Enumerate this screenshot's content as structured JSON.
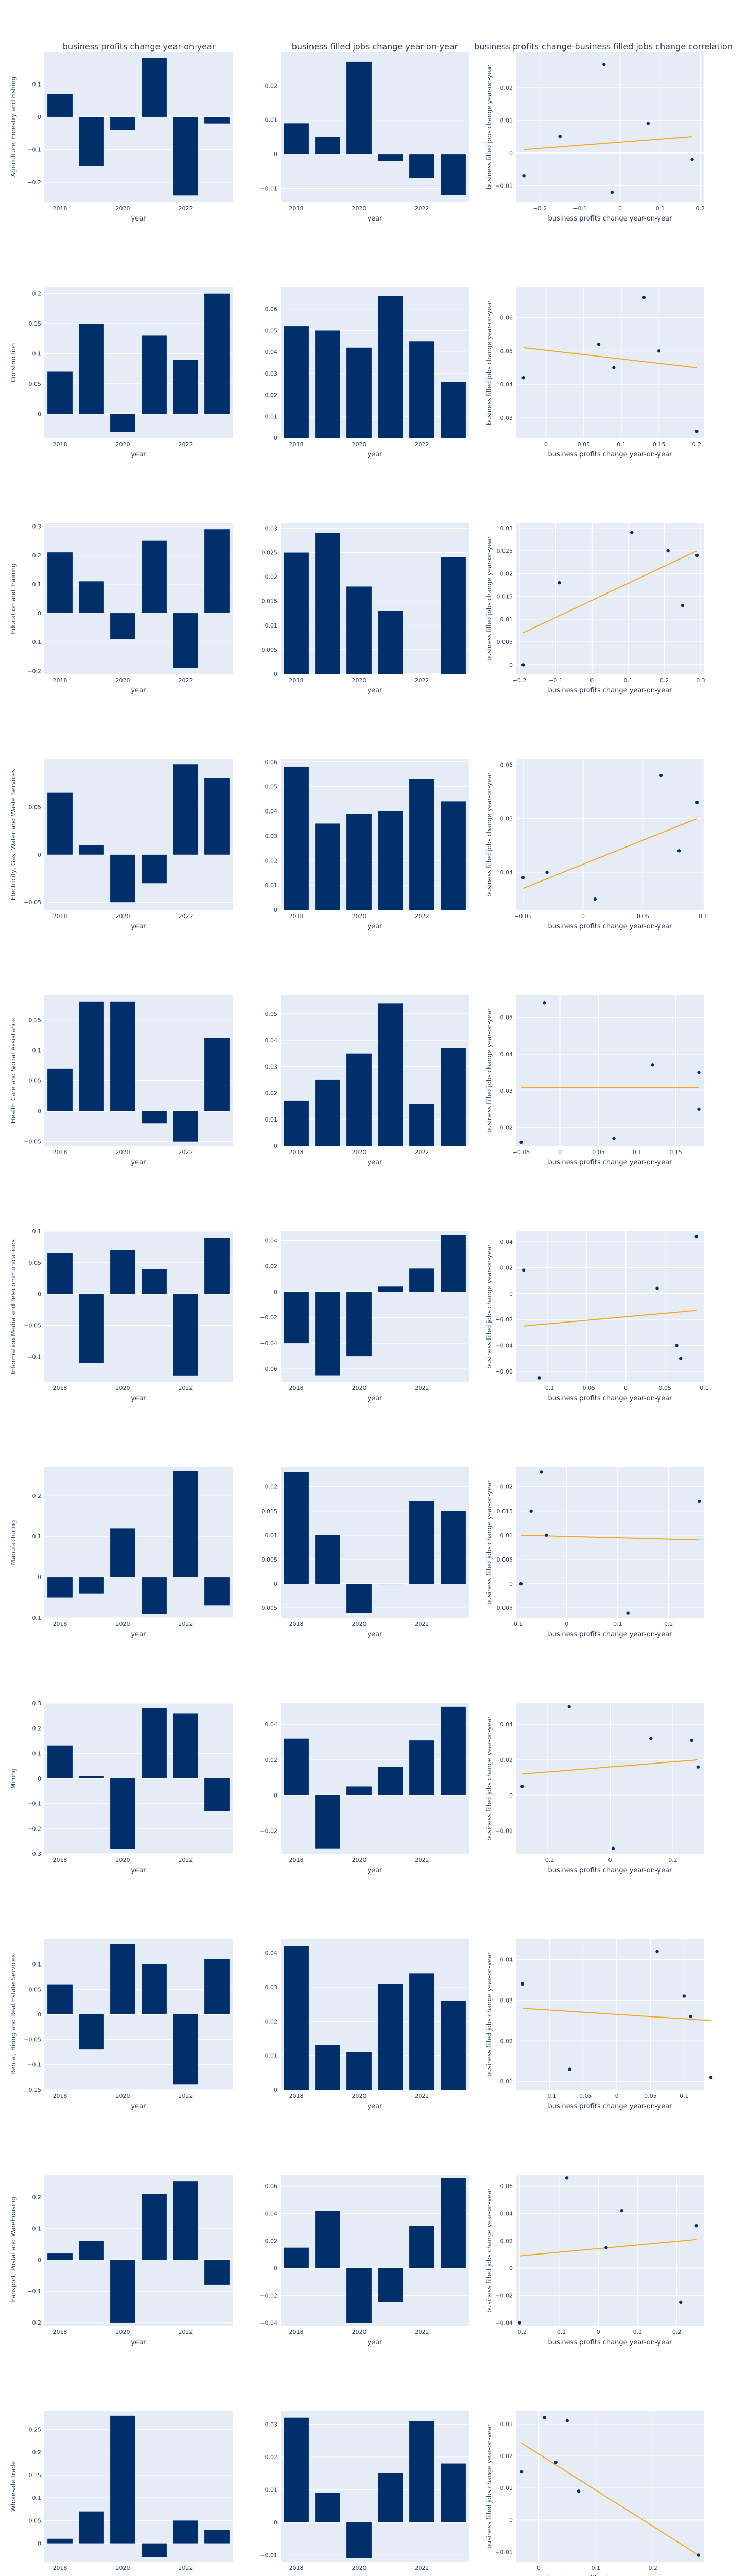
{
  "column_titles": [
    "business profits change year-on-year",
    "business filled jobs change year-on-year",
    "business profits change-business filled jobs change correlation"
  ],
  "axis_titles": {
    "bar_x": "year",
    "scatter_x": "business profits change year-on-year",
    "scatter_y": "business filled jobs change year-on-year"
  },
  "colors": {
    "bar": "#002f6c",
    "point": "#002f6c",
    "trendline": "#f5a623",
    "plot_bg": "#e5ecf6",
    "grid": "#ffffff",
    "text": "#2a3f5f"
  },
  "chart_data": {
    "type": "bar",
    "layout": "11 rows x 3 columns: profits bar chart, filled jobs bar chart, scatter with linear trendline",
    "years": [
      2018,
      2019,
      2020,
      2021,
      2022,
      2023
    ],
    "x_tick_labels": [
      "2018",
      "2020",
      "2022"
    ],
    "rows": [
      {
        "industry": "Agriculture, Forestry and Fishing",
        "profits": [
          0.07,
          -0.15,
          -0.04,
          0.18,
          -0.24,
          -0.02
        ],
        "profits_ticks": [
          -0.2,
          -0.1,
          0,
          0.1
        ],
        "profits_range": [
          -0.26,
          0.2
        ],
        "jobs": [
          0.009,
          0.005,
          0.027,
          -0.002,
          -0.007,
          -0.012
        ],
        "jobs_ticks": [
          -0.01,
          0,
          0.01,
          0.02
        ],
        "jobs_range": [
          -0.014,
          0.03
        ],
        "scatter_x_ticks": [
          -0.2,
          -0.1,
          0,
          0.1,
          0.2
        ],
        "scatter_x_range": [
          -0.26,
          0.21
        ],
        "scatter_y_range": [
          -0.015,
          0.031
        ],
        "trend": [
          0.001,
          0.005
        ]
      },
      {
        "industry": "Construction",
        "profits": [
          0.07,
          0.15,
          -0.03,
          0.13,
          0.09,
          0.2
        ],
        "profits_ticks": [
          0,
          0.05,
          0.1,
          0.15,
          0.2
        ],
        "profits_range": [
          -0.04,
          0.21
        ],
        "jobs": [
          0.052,
          0.05,
          0.042,
          0.066,
          0.045,
          0.026
        ],
        "jobs_ticks": [
          0,
          0.01,
          0.02,
          0.03,
          0.04,
          0.05,
          0.06
        ],
        "jobs_range": [
          0,
          0.07
        ],
        "scatter_x_ticks": [
          0,
          0.05,
          0.1,
          0.15,
          0.2
        ],
        "scatter_x_range": [
          -0.04,
          0.21
        ],
        "scatter_y_range": [
          0.024,
          0.069
        ],
        "trend": [
          0.051,
          0.045
        ]
      },
      {
        "industry": "Education and Training",
        "profits": [
          0.21,
          0.11,
          -0.09,
          0.25,
          -0.19,
          0.29
        ],
        "profits_ticks": [
          -0.2,
          -0.1,
          0,
          0.1,
          0.2,
          0.3
        ],
        "profits_range": [
          -0.21,
          0.31
        ],
        "jobs": [
          0.025,
          0.029,
          0.018,
          0.013,
          0.0,
          0.024
        ],
        "jobs_ticks": [
          0,
          0.005,
          0.01,
          0.015,
          0.02,
          0.025,
          0.03
        ],
        "jobs_range": [
          0,
          0.031
        ],
        "scatter_x_ticks": [
          -0.2,
          -0.1,
          0,
          0.1,
          0.2,
          0.3
        ],
        "scatter_x_range": [
          -0.21,
          0.31
        ],
        "scatter_y_range": [
          -0.002,
          0.031
        ],
        "trend": [
          0.007,
          0.025
        ]
      },
      {
        "industry": "Electricity, Gas, Water and Waste Services",
        "profits": [
          0.065,
          0.01,
          -0.05,
          -0.03,
          0.095,
          0.08
        ],
        "profits_ticks": [
          -0.05,
          0,
          0.05
        ],
        "profits_range": [
          -0.058,
          0.1
        ],
        "jobs": [
          0.058,
          0.035,
          0.039,
          0.04,
          0.053,
          0.044
        ],
        "jobs_ticks": [
          0,
          0.01,
          0.02,
          0.03,
          0.04,
          0.05,
          0.06
        ],
        "jobs_range": [
          0,
          0.061
        ],
        "scatter_x_ticks": [
          -0.05,
          0,
          0.05,
          0.1
        ],
        "scatter_x_range": [
          -0.056,
          0.101
        ],
        "scatter_y_range": [
          0.033,
          0.061
        ],
        "trend": [
          0.037,
          0.05
        ]
      },
      {
        "industry": "Health Care and Social Assistance",
        "profits": [
          0.07,
          0.18,
          0.18,
          -0.02,
          -0.05,
          0.12
        ],
        "profits_ticks": [
          -0.05,
          0,
          0.05,
          0.1,
          0.15
        ],
        "profits_range": [
          -0.057,
          0.19
        ],
        "jobs": [
          0.017,
          0.025,
          0.035,
          0.054,
          0.016,
          0.037
        ],
        "jobs_ticks": [
          0,
          0.01,
          0.02,
          0.03,
          0.04,
          0.05
        ],
        "jobs_range": [
          0,
          0.057
        ],
        "scatter_x_ticks": [
          -0.05,
          0,
          0.05,
          0.1,
          0.15
        ],
        "scatter_x_range": [
          -0.057,
          0.187
        ],
        "scatter_y_range": [
          0.015,
          0.056
        ],
        "trend": [
          0.031,
          0.031
        ]
      },
      {
        "industry": "Information Media and Telecommunications",
        "profits": [
          0.065,
          -0.11,
          0.07,
          0.04,
          -0.13,
          0.09
        ],
        "profits_ticks": [
          -0.1,
          -0.05,
          0,
          0.05,
          0.1
        ],
        "profits_range": [
          -0.14,
          0.1
        ],
        "jobs": [
          -0.04,
          -0.065,
          -0.05,
          0.004,
          0.018,
          0.044
        ],
        "jobs_ticks": [
          -0.06,
          -0.04,
          -0.02,
          0,
          0.02,
          0.04
        ],
        "jobs_range": [
          -0.07,
          0.047
        ],
        "scatter_x_ticks": [
          -0.1,
          -0.05,
          0,
          0.05,
          0.1
        ],
        "scatter_x_range": [
          -0.14,
          0.1
        ],
        "scatter_y_range": [
          -0.068,
          0.048
        ],
        "trend": [
          -0.025,
          -0.013
        ]
      },
      {
        "industry": "Manufacturing",
        "profits": [
          -0.05,
          -0.04,
          0.12,
          -0.09,
          0.26,
          -0.07
        ],
        "profits_ticks": [
          -0.1,
          0,
          0.1,
          0.2
        ],
        "profits_range": [
          -0.1,
          0.27
        ],
        "jobs": [
          0.023,
          0.01,
          -0.006,
          0.0,
          0.017,
          0.015
        ],
        "jobs_ticks": [
          -0.005,
          0,
          0.005,
          0.01,
          0.015,
          0.02
        ],
        "jobs_range": [
          -0.007,
          0.024
        ],
        "scatter_x_ticks": [
          -0.1,
          0,
          0.1,
          0.2
        ],
        "scatter_x_range": [
          -0.1,
          0.27
        ],
        "scatter_y_range": [
          -0.007,
          0.024
        ],
        "trend": [
          0.01,
          0.009
        ]
      },
      {
        "industry": "Mining",
        "profits": [
          0.13,
          0.01,
          -0.28,
          0.28,
          0.26,
          -0.13
        ],
        "profits_ticks": [
          -0.3,
          -0.2,
          -0.1,
          0,
          0.1,
          0.2,
          0.3
        ],
        "profits_range": [
          -0.3,
          0.3
        ],
        "jobs": [
          0.032,
          -0.03,
          0.005,
          0.016,
          0.031,
          0.05
        ],
        "jobs_ticks": [
          -0.02,
          0,
          0.02,
          0.04
        ],
        "jobs_range": [
          -0.033,
          0.052
        ],
        "scatter_x_ticks": [
          -0.2,
          0,
          0.2
        ],
        "scatter_x_range": [
          -0.3,
          0.3
        ],
        "scatter_y_range": [
          -0.033,
          0.052
        ],
        "trend": [
          0.012,
          0.02
        ]
      },
      {
        "industry": "Rental, Hiring and Real Estate Services",
        "profits": [
          0.06,
          -0.07,
          0.14,
          0.1,
          -0.14,
          0.11
        ],
        "profits_ticks": [
          -0.15,
          -0.1,
          -0.05,
          0,
          0.05,
          0.1
        ],
        "profits_range": [
          -0.15,
          0.15
        ],
        "jobs": [
          0.042,
          0.013,
          0.011,
          0.031,
          0.034,
          0.026
        ],
        "jobs_ticks": [
          0,
          0.01,
          0.02,
          0.03,
          0.04
        ],
        "jobs_range": [
          0,
          0.044
        ],
        "scatter_x_ticks": [
          -0.1,
          -0.05,
          0,
          0.05,
          0.1
        ],
        "scatter_x_range": [
          -0.15,
          0.13
        ],
        "scatter_y_range": [
          0.008,
          0.045
        ],
        "trend": [
          0.028,
          0.025
        ]
      },
      {
        "industry": "Transport, Postal and Warehousing",
        "profits": [
          0.02,
          0.06,
          -0.2,
          0.21,
          0.25,
          -0.08
        ],
        "profits_ticks": [
          -0.2,
          -0.1,
          0,
          0.1,
          0.2
        ],
        "profits_range": [
          -0.21,
          0.27
        ],
        "jobs": [
          0.015,
          0.042,
          -0.04,
          -0.025,
          0.031,
          0.066
        ],
        "jobs_ticks": [
          -0.04,
          -0.02,
          0,
          0.02,
          0.04,
          0.06
        ],
        "jobs_range": [
          -0.042,
          0.068
        ],
        "scatter_x_ticks": [
          -0.2,
          -0.1,
          0,
          0.1,
          0.2
        ],
        "scatter_x_range": [
          -0.21,
          0.27
        ],
        "scatter_y_range": [
          -0.042,
          0.068
        ],
        "trend": [
          0.009,
          0.021
        ]
      },
      {
        "industry": "Wholesale Trade",
        "profits": [
          0.01,
          0.07,
          0.28,
          -0.03,
          0.05,
          0.03
        ],
        "profits_ticks": [
          0,
          0.05,
          0.1,
          0.15,
          0.2,
          0.25
        ],
        "profits_range": [
          -0.04,
          0.29
        ],
        "jobs": [
          0.032,
          0.009,
          -0.011,
          0.015,
          0.031,
          0.018
        ],
        "jobs_ticks": [
          -0.01,
          0,
          0.01,
          0.02,
          0.03
        ],
        "jobs_range": [
          -0.012,
          0.034
        ],
        "scatter_x_ticks": [
          0,
          0.1,
          0.2
        ],
        "scatter_x_range": [
          -0.04,
          0.29
        ],
        "scatter_y_range": [
          -0.013,
          0.034
        ],
        "trend": [
          0.024,
          -0.011
        ]
      }
    ]
  }
}
